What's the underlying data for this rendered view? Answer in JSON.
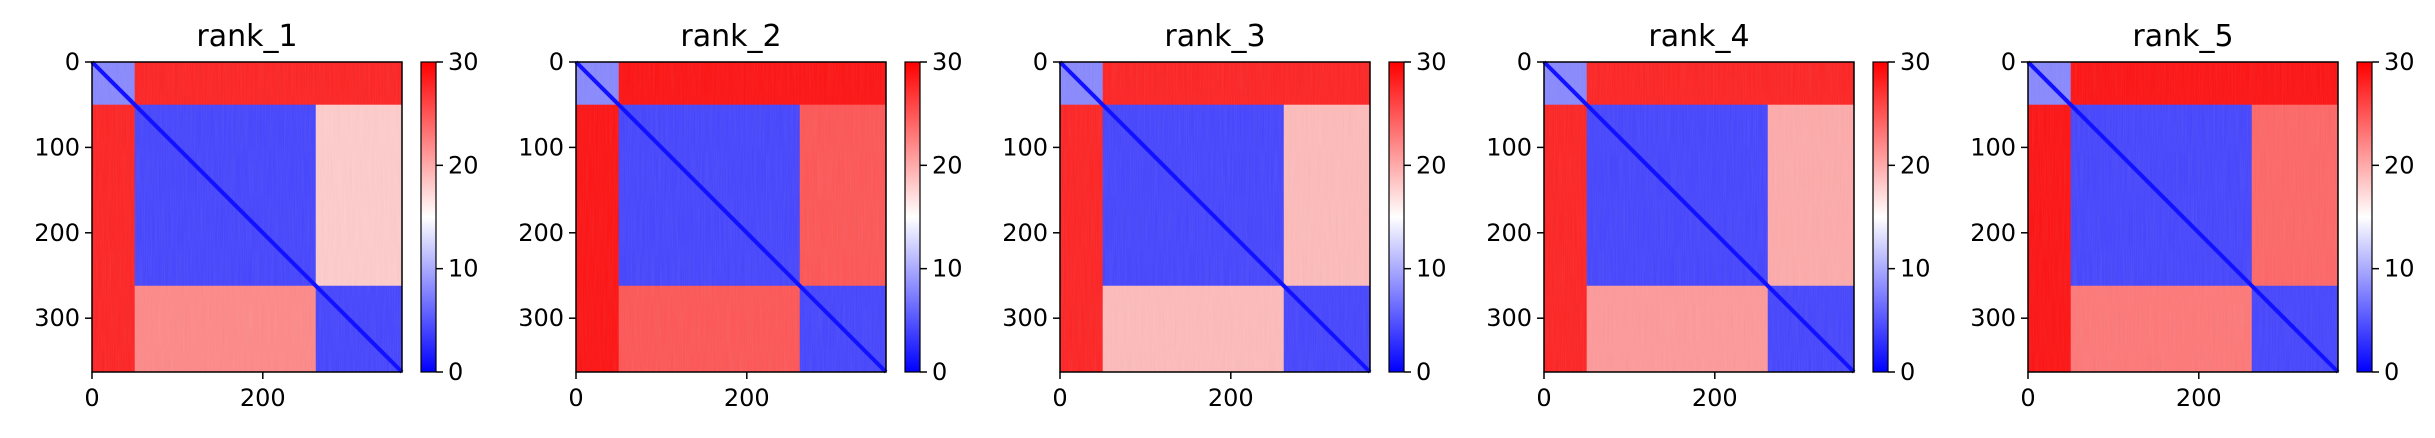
{
  "chart_data": [
    {
      "type": "heatmap",
      "title": "rank_1",
      "x_ticks": [
        0,
        200
      ],
      "y_ticks": [
        0,
        100,
        200,
        300
      ],
      "xlim": [
        0,
        363
      ],
      "ylim": [
        363,
        0
      ],
      "colorbar": {
        "ticks": [
          0,
          10,
          20,
          30
        ],
        "range": [
          0,
          30
        ]
      },
      "blocks": [
        [
          0,
          50
        ],
        [
          50,
          262
        ],
        [
          262,
          363
        ]
      ],
      "block_values": [
        [
          8,
          28,
          28
        ],
        [
          28,
          4,
          18
        ],
        [
          28,
          22,
          4
        ]
      ]
    },
    {
      "type": "heatmap",
      "title": "rank_2",
      "x_ticks": [
        0,
        200
      ],
      "y_ticks": [
        0,
        100,
        200,
        300
      ],
      "xlim": [
        0,
        363
      ],
      "ylim": [
        363,
        0
      ],
      "colorbar": {
        "ticks": [
          0,
          10,
          20,
          30
        ],
        "range": [
          0,
          30
        ]
      },
      "blocks": [
        [
          0,
          50
        ],
        [
          50,
          262
        ],
        [
          262,
          363
        ]
      ],
      "block_values": [
        [
          8,
          29,
          29
        ],
        [
          29,
          4,
          25
        ],
        [
          29,
          25,
          4
        ]
      ]
    },
    {
      "type": "heatmap",
      "title": "rank_3",
      "x_ticks": [
        0,
        200
      ],
      "y_ticks": [
        0,
        100,
        200,
        300
      ],
      "xlim": [
        0,
        363
      ],
      "ylim": [
        363,
        0
      ],
      "colorbar": {
        "ticks": [
          0,
          10,
          20,
          30
        ],
        "range": [
          0,
          30
        ]
      },
      "blocks": [
        [
          0,
          50
        ],
        [
          50,
          262
        ],
        [
          262,
          363
        ]
      ],
      "block_values": [
        [
          8,
          28,
          28
        ],
        [
          28,
          4,
          19
        ],
        [
          28,
          19,
          4
        ]
      ]
    },
    {
      "type": "heatmap",
      "title": "rank_4",
      "x_ticks": [
        0,
        200
      ],
      "y_ticks": [
        0,
        100,
        200,
        300
      ],
      "xlim": [
        0,
        363
      ],
      "ylim": [
        363,
        0
      ],
      "colorbar": {
        "ticks": [
          0,
          10,
          20,
          30
        ],
        "range": [
          0,
          30
        ]
      },
      "blocks": [
        [
          0,
          50
        ],
        [
          50,
          262
        ],
        [
          262,
          363
        ]
      ],
      "block_values": [
        [
          8,
          28,
          28
        ],
        [
          28,
          4,
          20
        ],
        [
          28,
          21,
          4
        ]
      ]
    },
    {
      "type": "heatmap",
      "title": "rank_5",
      "x_ticks": [
        0,
        200
      ],
      "y_ticks": [
        0,
        100,
        200,
        300
      ],
      "xlim": [
        0,
        363
      ],
      "ylim": [
        363,
        0
      ],
      "colorbar": {
        "ticks": [
          0,
          10,
          20,
          30
        ],
        "range": [
          0,
          30
        ]
      },
      "blocks": [
        [
          0,
          50
        ],
        [
          50,
          262
        ],
        [
          262,
          363
        ]
      ],
      "block_values": [
        [
          8,
          29,
          29
        ],
        [
          29,
          4,
          24
        ],
        [
          29,
          23,
          4
        ]
      ]
    }
  ],
  "colors": {
    "low": "#0000ff",
    "mid": "#ffffff",
    "high": "#ff0000",
    "axis": "#000000"
  }
}
